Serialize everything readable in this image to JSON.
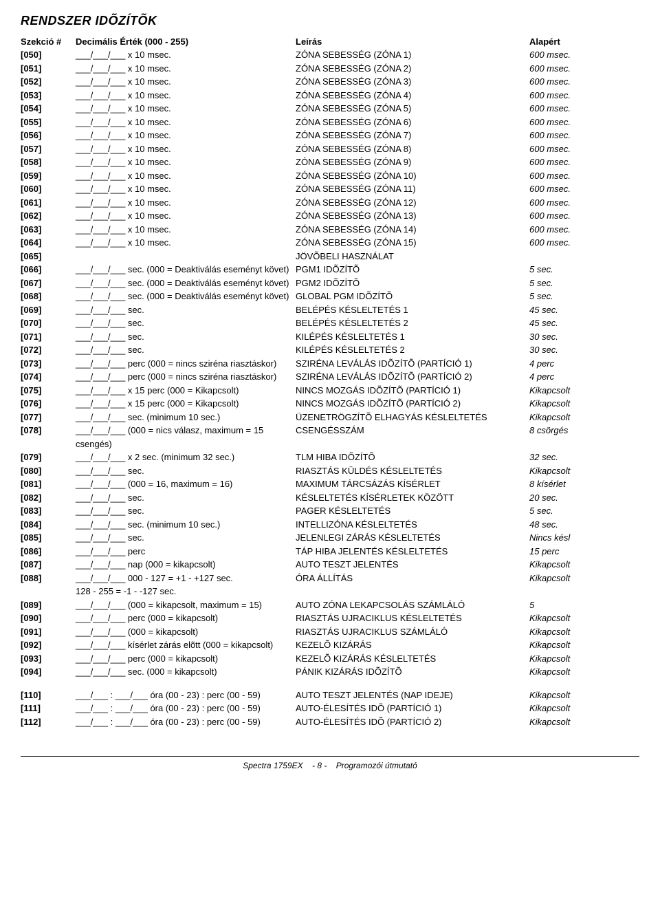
{
  "title": "RENDSZER IDÕZÍTÕK",
  "headers": {
    "section": "Szekció #",
    "value": "Decimális Érték (000 - 255)",
    "desc": "Leírás",
    "def": "Alapért"
  },
  "blanks": "___/___/___",
  "blanks_time": "___/___ : ___/___",
  "rows": [
    {
      "s": "[050]",
      "v": "x 10 msec.",
      "d": "ZÓNA SEBESSÉG (ZÓNA 1)",
      "a": "600 msec."
    },
    {
      "s": "[051]",
      "v": "x 10 msec.",
      "d": "ZÓNA SEBESSÉG (ZÓNA 2)",
      "a": "600 msec."
    },
    {
      "s": "[052]",
      "v": "x 10 msec.",
      "d": "ZÓNA SEBESSÉG (ZÓNA 3)",
      "a": "600 msec."
    },
    {
      "s": "[053]",
      "v": "x 10 msec.",
      "d": "ZÓNA SEBESSÉG (ZÓNA 4)",
      "a": "600 msec."
    },
    {
      "s": "[054]",
      "v": "x 10 msec.",
      "d": "ZÓNA SEBESSÉG (ZÓNA 5)",
      "a": "600 msec."
    },
    {
      "s": "[055]",
      "v": "x 10 msec.",
      "d": "ZÓNA SEBESSÉG (ZÓNA 6)",
      "a": "600 msec."
    },
    {
      "s": "[056]",
      "v": "x 10 msec.",
      "d": "ZÓNA SEBESSÉG (ZÓNA 7)",
      "a": "600 msec."
    },
    {
      "s": "[057]",
      "v": "x 10 msec.",
      "d": "ZÓNA SEBESSÉG (ZÓNA 8)",
      "a": "600 msec."
    },
    {
      "s": "[058]",
      "v": "x 10 msec.",
      "d": "ZÓNA SEBESSÉG (ZÓNA 9)",
      "a": "600 msec."
    },
    {
      "s": "[059]",
      "v": "x 10 msec.",
      "d": "ZÓNA SEBESSÉG (ZÓNA 10)",
      "a": "600 msec."
    },
    {
      "s": "[060]",
      "v": "x 10 msec.",
      "d": "ZÓNA SEBESSÉG (ZÓNA 11)",
      "a": "600 msec."
    },
    {
      "s": "[061]",
      "v": "x 10 msec.",
      "d": "ZÓNA SEBESSÉG (ZÓNA 12)",
      "a": "600 msec."
    },
    {
      "s": "[062]",
      "v": "x 10 msec.",
      "d": "ZÓNA SEBESSÉG (ZÓNA 13)",
      "a": "600 msec."
    },
    {
      "s": "[063]",
      "v": "x 10 msec.",
      "d": "ZÓNA SEBESSÉG (ZÓNA 14)",
      "a": "600 msec."
    },
    {
      "s": "[064]",
      "v": "x 10 msec.",
      "d": "ZÓNA SEBESSÉG (ZÓNA 15)",
      "a": "600 msec."
    },
    {
      "s": "[065]",
      "noinput": true,
      "v": "",
      "d": "JÖVÕBELI HASZNÁLAT",
      "a": ""
    },
    {
      "s": "[066]",
      "v": "sec. (000 = Deaktiválás eseményt követ)",
      "d": "PGM1 IDÕZÍTÕ",
      "a": "5 sec."
    },
    {
      "s": "[067]",
      "v": "sec. (000 = Deaktiválás eseményt követ)",
      "d": "PGM2 IDÕZÍTÕ",
      "a": "5 sec."
    },
    {
      "s": "[068]",
      "v": "sec. (000 = Deaktiválás eseményt követ)",
      "d": "GLOBAL PGM IDÕZÍTÕ",
      "a": "5 sec."
    },
    {
      "s": "[069]",
      "v": "sec.",
      "d": "BELÉPÉS KÉSLELTETÉS 1",
      "a": "45 sec."
    },
    {
      "s": "[070]",
      "v": "sec.",
      "d": "BELÉPÉS KÉSLELTETÉS 2",
      "a": "45 sec."
    },
    {
      "s": "[071]",
      "v": "sec.",
      "d": "KILÉPÉS KÉSLELTETÉS 1",
      "a": "30 sec."
    },
    {
      "s": "[072]",
      "v": "sec.",
      "d": "KILÉPÉS KÉSLELTETÉS 2",
      "a": "30 sec."
    },
    {
      "s": "[073]",
      "v": "perc (000 = nincs sziréna riasztáskor)",
      "d": "SZIRÉNA LEVÁLÁS IDÕZÍTÕ (PARTÍCIÓ 1)",
      "a": "4 perc"
    },
    {
      "s": "[074]",
      "v": "perc (000 = nincs sziréna riasztáskor)",
      "d": "SZIRÉNA LEVÁLÁS IDÕZÍTÕ (PARTÍCIÓ 2)",
      "a": "4 perc"
    },
    {
      "s": "[075]",
      "v": "x 15 perc (000 = Kikapcsolt)",
      "d": "NINCS MOZGÁS IDÕZÍTÕ (PARTÍCIÓ 1)",
      "a": "Kikapcsolt"
    },
    {
      "s": "[076]",
      "v": "x 15 perc (000 = Kikapcsolt)",
      "d": "NINCS MOZGÁS IDÕZÍTÕ (PARTÍCIÓ 2)",
      "a": "Kikapcsolt"
    },
    {
      "s": "[077]",
      "v": "sec. (minimum 10 sec.)",
      "d": "ÜZENETRÖGZÍTÕ ELHAGYÁS KÉSLELTETÉS",
      "a": "Kikapcsolt"
    },
    {
      "s": "[078]",
      "v": "(000 = nics válasz, maximum = 15 csengés)",
      "d": "CSENGÉSSZÁM",
      "a": "8 csörgés"
    },
    {
      "s": "[079]",
      "v": "x 2 sec. (minimum 32 sec.)",
      "d": "TLM HIBA IDÕZÍTÕ",
      "a": "32 sec."
    },
    {
      "s": "[080]",
      "v": "sec.",
      "d": "RIASZTÁS KÜLDÉS KÉSLELTETÉS",
      "a": "Kikapcsolt"
    },
    {
      "s": "[081]",
      "v": "(000 = 16, maximum = 16)",
      "d": "MAXIMUM TÁRCSÁZÁS KÍSÉRLET",
      "a": "8 kísérlet"
    },
    {
      "s": "[082]",
      "v": "sec.",
      "d": "KÉSLELTETÉS KÍSÉRLETEK KÖZÖTT",
      "a": "20 sec."
    },
    {
      "s": "[083]",
      "v": "sec.",
      "d": "PAGER KÉSLELTETÉS",
      "a": "5 sec."
    },
    {
      "s": "[084]",
      "v": "sec. (minimum 10 sec.)",
      "d": "INTELLIZÓNA KÉSLELTETÉS",
      "a": "48 sec."
    },
    {
      "s": "[085]",
      "v": "sec.",
      "d": "JELENLEGI ZÁRÁS KÉSLELTETÉS",
      "a": "Nincs késl"
    },
    {
      "s": "[086]",
      "v": "perc",
      "d": "TÁP HIBA JELENTÉS KÉSLELTETÉS",
      "a": "15 perc"
    },
    {
      "s": "[087]",
      "v": "nap (000 = kikapcsolt)",
      "d": "AUTO TESZT JELENTÉS",
      "a": "Kikapcsolt"
    },
    {
      "s": "[088]",
      "v": "000 - 127 = +1 - +127 sec.",
      "d": "ÓRA ÁLLÍTÁS",
      "a": "Kikapcsolt"
    },
    {
      "s": "",
      "noinput": true,
      "raw": true,
      "v": "128 - 255 = -1 - -127 sec.",
      "d": "",
      "a": ""
    },
    {
      "s": "[089]",
      "v": "(000 = kikapcsolt, maximum = 15)",
      "d": "AUTO ZÓNA LEKAPCSOLÁS SZÁMLÁLÓ",
      "a": "5"
    },
    {
      "s": "[090]",
      "v": "perc (000 = kikapcsolt)",
      "d": "RIASZTÁS UJRACIKLUS KÉSLELTETÉS",
      "a": "Kikapcsolt"
    },
    {
      "s": "[091]",
      "v": "(000 = kikapcsolt)",
      "d": "RIASZTÁS UJRACIKLUS SZÁMLÁLÓ",
      "a": "Kikapcsolt"
    },
    {
      "s": "[092]",
      "v": "kísérlet zárás elõtt (000 = kikapcsolt)",
      "d": "KEZELÕ KIZÁRÁS",
      "a": "Kikapcsolt"
    },
    {
      "s": "[093]",
      "v": "perc (000 = kikapcsolt)",
      "d": "KEZELÕ KIZÁRÁS KÉSLELTETÉS",
      "a": "Kikapcsolt"
    },
    {
      "s": "[094]",
      "v": "sec. (000 = kikapcsolt)",
      "d": "PÁNIK KIZÁRÁS IDÕZÍTÕ",
      "a": "Kikapcsolt"
    }
  ],
  "rows2": [
    {
      "s": "[110]",
      "v": "óra (00 - 23) : perc (00 - 59)",
      "d": "AUTO TESZT JELENTÉS (NAP IDEJE)",
      "a": "Kikapcsolt"
    },
    {
      "s": "[111]",
      "v": "óra (00 - 23) : perc (00 - 59)",
      "d": "AUTO-ÉLESÍTÉS IDÕ (PARTÍCIÓ 1)",
      "a": "Kikapcsolt"
    },
    {
      "s": "[112]",
      "v": "óra (00 - 23) : perc (00 - 59)",
      "d": "AUTO-ÉLESÍTÉS IDÕ (PARTÍCIÓ 2)",
      "a": "Kikapcsolt"
    }
  ],
  "footer": {
    "left": "Spectra 1759EX",
    "page": "- 8 -",
    "right": "Programozói útmutató"
  }
}
